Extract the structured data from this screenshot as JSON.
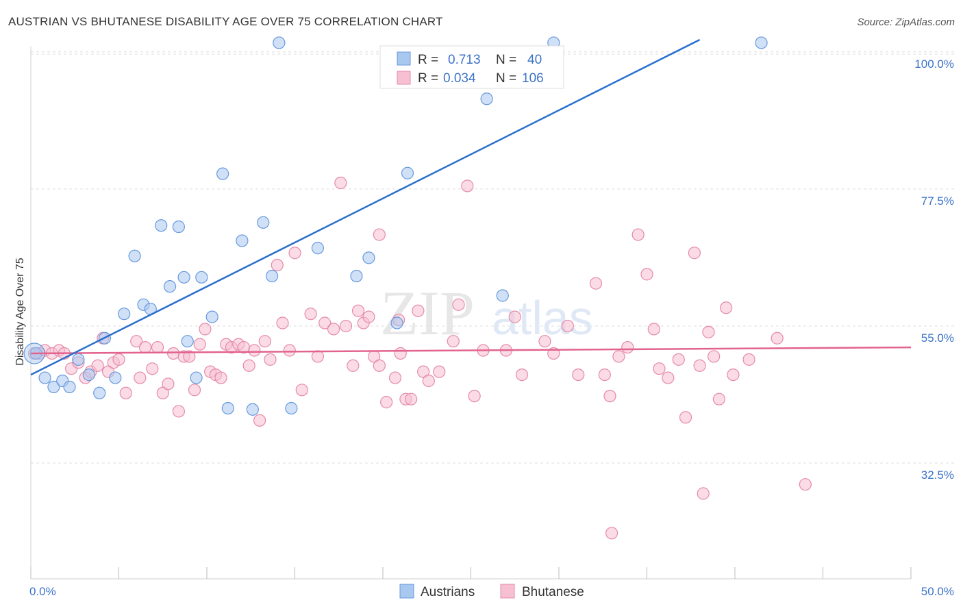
{
  "title": "AUSTRIAN VS BHUTANESE DISABILITY AGE OVER 75 CORRELATION CHART",
  "source": "Source: ZipAtlas.com",
  "watermark": {
    "zip": "ZIP",
    "atlas": "atlas"
  },
  "colors": {
    "austrians_fill": "#a9c8f0",
    "austrians_stroke": "#6699dd",
    "austrians_line": "#2a6fcf",
    "bhutanese_fill": "#f7c0d2",
    "bhutanese_stroke": "#e58aa8",
    "bhutanese_line": "#e2638e",
    "grid": "#dcdcdc",
    "axis_text": "#3b72c9"
  },
  "stats_legend": {
    "austrians": {
      "r_label": "R =",
      "r_value": "0.713",
      "n_label": "N =",
      "n_value": "40"
    },
    "bhutanese": {
      "r_label": "R =",
      "r_value": "0.034",
      "n_label": "N =",
      "n_value": "106"
    }
  },
  "chart_data": {
    "type": "scatter",
    "xlabel": "",
    "ylabel": "Disability Age Over 75",
    "xlim": [
      0,
      50
    ],
    "ylim": [
      13.5,
      102
    ],
    "x_tick_labels": [
      "0.0%",
      "50.0%"
    ],
    "y_ticks": [
      {
        "value": 32.5,
        "label": "32.5%"
      },
      {
        "value": 55.0,
        "label": "55.0%"
      },
      {
        "value": 77.5,
        "label": "77.5%"
      },
      {
        "value": 100.0,
        "label": "100.0%"
      }
    ],
    "grid": true,
    "legend_position": "bottom-center",
    "series": [
      {
        "name": "Austrians",
        "trend": {
          "x": [
            0,
            38
          ],
          "y": [
            47.0,
            102
          ]
        },
        "points": [
          [
            0.3,
            50.5
          ],
          [
            0.8,
            46.5
          ],
          [
            1.3,
            45.0
          ],
          [
            1.8,
            46.0
          ],
          [
            2.2,
            45.0
          ],
          [
            2.7,
            49.5
          ],
          [
            3.3,
            47.0
          ],
          [
            3.9,
            44.0
          ],
          [
            4.2,
            53.0
          ],
          [
            4.8,
            46.5
          ],
          [
            5.3,
            57.0
          ],
          [
            5.9,
            66.5
          ],
          [
            6.4,
            58.5
          ],
          [
            6.8,
            57.8
          ],
          [
            7.4,
            71.5
          ],
          [
            7.9,
            61.5
          ],
          [
            8.4,
            71.3
          ],
          [
            8.7,
            63.0
          ],
          [
            8.9,
            52.5
          ],
          [
            9.4,
            46.5
          ],
          [
            9.7,
            63.0
          ],
          [
            10.3,
            56.5
          ],
          [
            10.9,
            80.0
          ],
          [
            11.2,
            41.5
          ],
          [
            12.0,
            69.0
          ],
          [
            12.6,
            41.3
          ],
          [
            13.2,
            72.0
          ],
          [
            13.7,
            63.2
          ],
          [
            14.1,
            101.5
          ],
          [
            14.8,
            41.5
          ],
          [
            16.3,
            67.8
          ],
          [
            18.5,
            63.2
          ],
          [
            19.2,
            66.2
          ],
          [
            20.8,
            55.5
          ],
          [
            21.4,
            80.1
          ],
          [
            25.9,
            92.3
          ],
          [
            26.8,
            60.0
          ],
          [
            29.7,
            101.5
          ],
          [
            41.5,
            101.5
          ],
          [
            0.2,
            50.5
          ]
        ]
      },
      {
        "name": "Bhutanese",
        "trend": {
          "x": [
            0,
            50
          ],
          "y": [
            50.5,
            51.5
          ]
        },
        "points": [
          [
            0.2,
            50.5
          ],
          [
            0.5,
            50.5
          ],
          [
            0.8,
            51.0
          ],
          [
            1.2,
            50.5
          ],
          [
            1.6,
            51.0
          ],
          [
            1.9,
            50.5
          ],
          [
            2.3,
            48.0
          ],
          [
            2.7,
            49.0
          ],
          [
            3.1,
            46.5
          ],
          [
            3.4,
            47.5
          ],
          [
            3.8,
            48.5
          ],
          [
            4.1,
            53.0
          ],
          [
            4.4,
            47.5
          ],
          [
            4.7,
            49.0
          ],
          [
            5.0,
            49.5
          ],
          [
            5.4,
            44.0
          ],
          [
            6.0,
            52.5
          ],
          [
            6.2,
            46.5
          ],
          [
            6.5,
            51.5
          ],
          [
            6.9,
            48.0
          ],
          [
            7.2,
            51.5
          ],
          [
            7.5,
            44.0
          ],
          [
            7.8,
            45.5
          ],
          [
            8.1,
            50.5
          ],
          [
            8.4,
            41.0
          ],
          [
            8.7,
            50.0
          ],
          [
            9.0,
            50.0
          ],
          [
            9.3,
            44.5
          ],
          [
            9.6,
            52.0
          ],
          [
            9.9,
            54.5
          ],
          [
            10.2,
            47.5
          ],
          [
            10.5,
            47.0
          ],
          [
            10.8,
            46.5
          ],
          [
            11.1,
            52.0
          ],
          [
            11.4,
            51.5
          ],
          [
            11.8,
            52.0
          ],
          [
            12.1,
            51.5
          ],
          [
            12.4,
            48.5
          ],
          [
            12.7,
            51.0
          ],
          [
            13.0,
            39.5
          ],
          [
            13.3,
            52.5
          ],
          [
            13.6,
            49.5
          ],
          [
            14.0,
            65.0
          ],
          [
            14.3,
            55.5
          ],
          [
            14.7,
            51.0
          ],
          [
            15.0,
            67.0
          ],
          [
            15.4,
            44.5
          ],
          [
            15.9,
            57.0
          ],
          [
            16.3,
            50.0
          ],
          [
            16.7,
            55.5
          ],
          [
            17.2,
            54.5
          ],
          [
            17.6,
            78.5
          ],
          [
            17.9,
            55.0
          ],
          [
            18.3,
            48.5
          ],
          [
            18.6,
            57.5
          ],
          [
            18.9,
            55.5
          ],
          [
            19.2,
            56.5
          ],
          [
            19.5,
            50.0
          ],
          [
            19.8,
            48.5
          ],
          [
            19.8,
            70.0
          ],
          [
            20.2,
            42.5
          ],
          [
            20.7,
            46.5
          ],
          [
            20.9,
            56.0
          ],
          [
            21.0,
            50.5
          ],
          [
            21.3,
            43.0
          ],
          [
            21.6,
            43.0
          ],
          [
            22.0,
            57.5
          ],
          [
            22.3,
            47.5
          ],
          [
            22.6,
            46.0
          ],
          [
            23.2,
            47.5
          ],
          [
            24.0,
            52.5
          ],
          [
            24.3,
            58.5
          ],
          [
            24.8,
            78.0
          ],
          [
            25.2,
            43.5
          ],
          [
            25.7,
            51.0
          ],
          [
            27.0,
            51.0
          ],
          [
            27.5,
            56.5
          ],
          [
            27.9,
            47.0
          ],
          [
            29.2,
            52.5
          ],
          [
            29.7,
            50.5
          ],
          [
            30.5,
            55.0
          ],
          [
            31.1,
            47.0
          ],
          [
            32.1,
            62.0
          ],
          [
            32.6,
            47.0
          ],
          [
            32.9,
            43.5
          ],
          [
            33.0,
            21.0
          ],
          [
            33.4,
            50.0
          ],
          [
            33.9,
            51.5
          ],
          [
            34.5,
            70.0
          ],
          [
            35.0,
            63.5
          ],
          [
            35.4,
            54.5
          ],
          [
            35.7,
            48.0
          ],
          [
            36.2,
            46.5
          ],
          [
            36.8,
            49.5
          ],
          [
            37.2,
            40.0
          ],
          [
            37.7,
            67.0
          ],
          [
            38.0,
            48.5
          ],
          [
            38.2,
            27.5
          ],
          [
            38.5,
            54.0
          ],
          [
            38.8,
            50.0
          ],
          [
            39.1,
            43.0
          ],
          [
            39.5,
            58.0
          ],
          [
            39.9,
            47.0
          ],
          [
            40.8,
            49.5
          ],
          [
            42.4,
            53.0
          ],
          [
            44.0,
            29.0
          ]
        ]
      }
    ]
  },
  "bottom_legend": [
    {
      "label": "Austrians"
    },
    {
      "label": "Bhutanese"
    }
  ]
}
